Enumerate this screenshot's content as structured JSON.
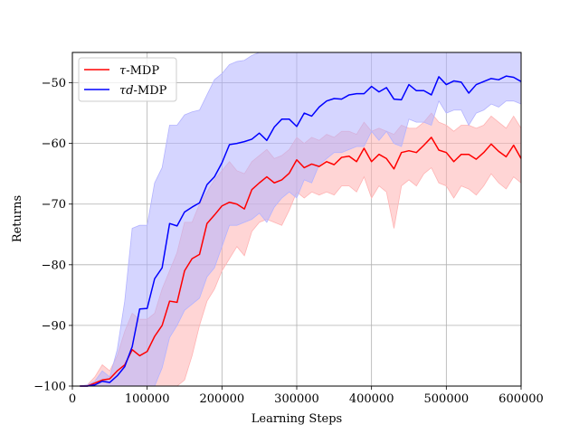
{
  "chart_data": {
    "type": "line",
    "title": "",
    "xlabel": "Learning Steps",
    "ylabel": "Returns",
    "xlim": [
      0,
      600000
    ],
    "ylim": [
      -100,
      -45
    ],
    "xticks": [
      0,
      100000,
      200000,
      300000,
      400000,
      500000,
      600000
    ],
    "xtick_labels": [
      "0",
      "100000",
      "200000",
      "300000",
      "400000",
      "500000",
      "600000"
    ],
    "yticks": [
      -100,
      -90,
      -80,
      -70,
      -60,
      -50
    ],
    "ytick_labels": [
      "−100",
      "−90",
      "−80",
      "−70",
      "−60",
      "−50"
    ],
    "grid": true,
    "legend_position": "top-left",
    "x": [
      10000,
      20000,
      30000,
      40000,
      50000,
      60000,
      70000,
      80000,
      90000,
      100000,
      110000,
      120000,
      130000,
      140000,
      150000,
      160000,
      170000,
      180000,
      190000,
      200000,
      210000,
      220000,
      230000,
      240000,
      250000,
      260000,
      270000,
      280000,
      290000,
      300000,
      310000,
      320000,
      330000,
      340000,
      350000,
      360000,
      370000,
      380000,
      390000,
      400000,
      410000,
      420000,
      430000,
      440000,
      450000,
      460000,
      470000,
      480000,
      490000,
      500000,
      510000,
      520000,
      530000,
      540000,
      550000,
      560000,
      570000,
      580000,
      590000,
      600000
    ],
    "series": [
      {
        "name": "τ-MDP",
        "legend_main": "τ",
        "legend_suffix": "-MDP",
        "color": "#ff0000",
        "band_color": "#ffb3b3",
        "mean": [
          -100,
          -100,
          -99.5,
          -99,
          -98.8,
          -97.5,
          -96.5,
          -94,
          -95,
          -94.3,
          -91.8,
          -90,
          -86,
          -86.2,
          -81,
          -79,
          -78.3,
          -73.2,
          -71.8,
          -70.3,
          -69.7,
          -70,
          -70.8,
          -67.6,
          -66.5,
          -65.5,
          -66.5,
          -66,
          -64.9,
          -62.7,
          -64,
          -63.4,
          -63.8,
          -63,
          -63.5,
          -62.3,
          -62.1,
          -63,
          -60.8,
          -63,
          -61.8,
          -62.5,
          -64.2,
          -61.5,
          -61.2,
          -61.5,
          -60.3,
          -59,
          -61.1,
          -61.5,
          -63,
          -61.8,
          -61.8,
          -62.6,
          -61.5,
          -60.1,
          -61.3,
          -62.2,
          -60.3,
          -62.5
        ],
        "upper": [
          -100,
          -99.8,
          -98.5,
          -96.5,
          -97.5,
          -95,
          -91,
          -88,
          -89,
          -89,
          -88,
          -84,
          -81,
          -78,
          -73,
          -73,
          -70,
          -68,
          -66,
          -64.5,
          -63,
          -64.5,
          -65,
          -63,
          -62,
          -61,
          -62.5,
          -62,
          -61,
          -59,
          -60,
          -59,
          -59.5,
          -58.5,
          -59,
          -58,
          -58,
          -58.5,
          -56.5,
          -58,
          -57.5,
          -58,
          -58.5,
          -57,
          -57.5,
          -57.5,
          -56.5,
          -55,
          -56.5,
          -57,
          -58,
          -57,
          -57,
          -57.5,
          -57,
          -55.5,
          -56.5,
          -57.5,
          -55.5,
          -57.5
        ],
        "lower": [
          -100,
          -100,
          -100,
          -100,
          -100,
          -100,
          -100,
          -100,
          -100,
          -100,
          -100,
          -100,
          -100,
          -100,
          -99,
          -95,
          -90,
          -86,
          -84,
          -81,
          -79,
          -77,
          -78.5,
          -74.5,
          -73,
          -72.5,
          -73,
          -73.5,
          -71,
          -68,
          -69,
          -68,
          -68.5,
          -68,
          -68.5,
          -67,
          -67,
          -68,
          -65.5,
          -69,
          -67,
          -68,
          -74,
          -67,
          -66,
          -67,
          -65,
          -64,
          -66.5,
          -67,
          -69,
          -67,
          -67.5,
          -68.5,
          -67,
          -65,
          -66.5,
          -67.5,
          -65.5,
          -66.5
        ]
      },
      {
        "name": "τd-MDP",
        "legend_main": "τd",
        "legend_suffix": "-MDP",
        "color": "#0000ff",
        "band_color": "#b3b3ff",
        "mean": [
          -100,
          -100,
          -99.8,
          -99.2,
          -99.4,
          -98.3,
          -96.8,
          -93.5,
          -87.3,
          -87.2,
          -82.3,
          -80.5,
          -73.2,
          -73.6,
          -71.3,
          -70.5,
          -69.8,
          -66.8,
          -65.5,
          -63.2,
          -60.2,
          -60,
          -59.7,
          -59.3,
          -58.3,
          -59.5,
          -57.3,
          -56,
          -56,
          -57.2,
          -55,
          -55.5,
          -54,
          -53,
          -52.6,
          -52.7,
          -52,
          -51.8,
          -51.8,
          -50.6,
          -51.5,
          -50.8,
          -52.7,
          -52.8,
          -50.3,
          -51.3,
          -51.3,
          -52,
          -49,
          -50.3,
          -49.7,
          -49.9,
          -51.7,
          -50.3,
          -49.8,
          -49.3,
          -49.5,
          -48.9,
          -49.1,
          -49.8
        ],
        "upper": [
          -100,
          -99.8,
          -99.2,
          -97.5,
          -98.5,
          -94,
          -86,
          -74,
          -73.5,
          -73.5,
          -66.5,
          -64,
          -57,
          -57,
          -55.3,
          -54.8,
          -54.5,
          -52,
          -49.5,
          -48.5,
          -47,
          -46.5,
          -46.3,
          -45.5,
          -45,
          -45,
          -45,
          -45,
          -45,
          -45,
          -45,
          -45,
          -45,
          -45,
          -45,
          -45,
          -45,
          -45,
          -45,
          -45,
          -45,
          -45,
          -45,
          -45,
          -45,
          -45,
          -45,
          -45,
          -45,
          -45,
          -45,
          -45,
          -45,
          -45,
          -45,
          -45,
          -45,
          -45,
          -45,
          -45
        ],
        "lower": [
          -100,
          -100,
          -100,
          -100,
          -100,
          -100,
          -100,
          -100,
          -100,
          -100,
          -100,
          -97,
          -92,
          -90,
          -87.5,
          -86.5,
          -85.5,
          -82,
          -80.5,
          -77,
          -73.5,
          -73.5,
          -73,
          -72.5,
          -71.5,
          -73,
          -70.5,
          -69,
          -68,
          -69,
          -66,
          -66.5,
          -63.5,
          -62.5,
          -61.5,
          -61.5,
          -61,
          -60.5,
          -60.5,
          -58,
          -59.5,
          -58,
          -60,
          -60.5,
          -56,
          -56.5,
          -56.5,
          -57,
          -53,
          -55,
          -54.5,
          -54.5,
          -57,
          -55,
          -54.5,
          -53.5,
          -54,
          -53,
          -53,
          -53.5
        ]
      }
    ]
  }
}
